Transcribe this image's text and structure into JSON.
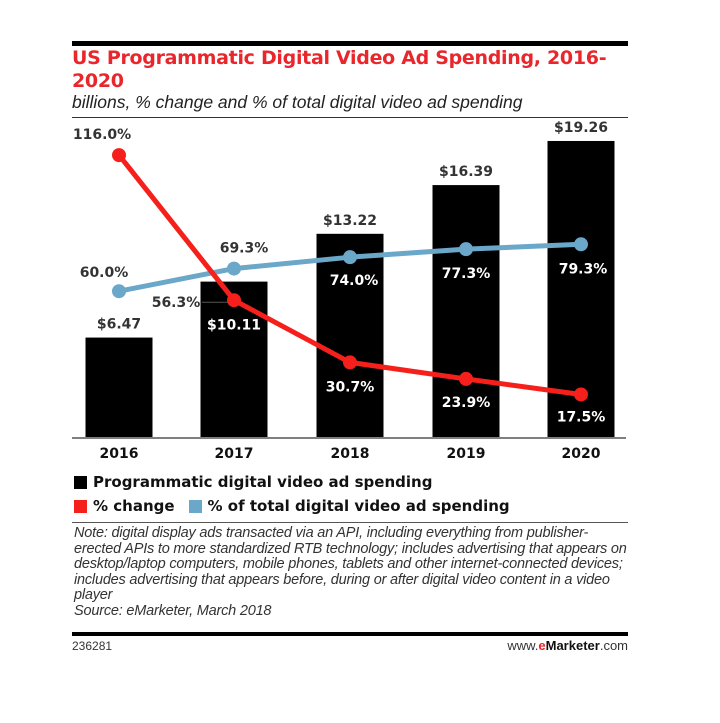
{
  "chart_data": {
    "type": "bar+line",
    "title": "US Programmatic Digital Video Ad Spending, 2016-2020",
    "subtitle": "billions, % change and % of total digital video ad spending",
    "categories": [
      "2016",
      "2017",
      "2018",
      "2019",
      "2020"
    ],
    "series": [
      {
        "name": "Programmatic digital video ad spending",
        "type": "bar",
        "color": "#000000",
        "values": [
          6.47,
          10.11,
          13.22,
          16.39,
          19.26
        ],
        "labels": [
          "$6.47",
          "$10.11",
          "$13.22",
          "$16.39",
          "$19.26"
        ]
      },
      {
        "name": "% change",
        "type": "line",
        "color": "#f5201b",
        "values": [
          116.0,
          56.3,
          30.7,
          23.9,
          17.5
        ],
        "labels": [
          "116.0%",
          "56.3%",
          "30.7%",
          "23.9%",
          "17.5%"
        ]
      },
      {
        "name": "% of total digital video ad spending",
        "type": "line",
        "color": "#6aa7c8",
        "values": [
          60.0,
          69.3,
          74.0,
          77.3,
          79.3
        ],
        "labels": [
          "60.0%",
          "69.3%",
          "74.0%",
          "77.3%",
          "79.3%"
        ]
      }
    ],
    "grid": false,
    "legend_position": "bottom"
  },
  "note": "Note: digital display ads transacted via an API, including everything from publisher-erected APIs to more standardized RTB technology; includes advertising that appears on desktop/laptop computers, mobile phones, tablets and other internet-connected devices; includes advertising that appears before, during or after digital video content in a video player",
  "source": "Source: eMarketer, March 2018",
  "chart_id": "236281",
  "brand": {
    "prefix": "www.",
    "e": "e",
    "name": "Marketer",
    "suffix": ".com"
  }
}
